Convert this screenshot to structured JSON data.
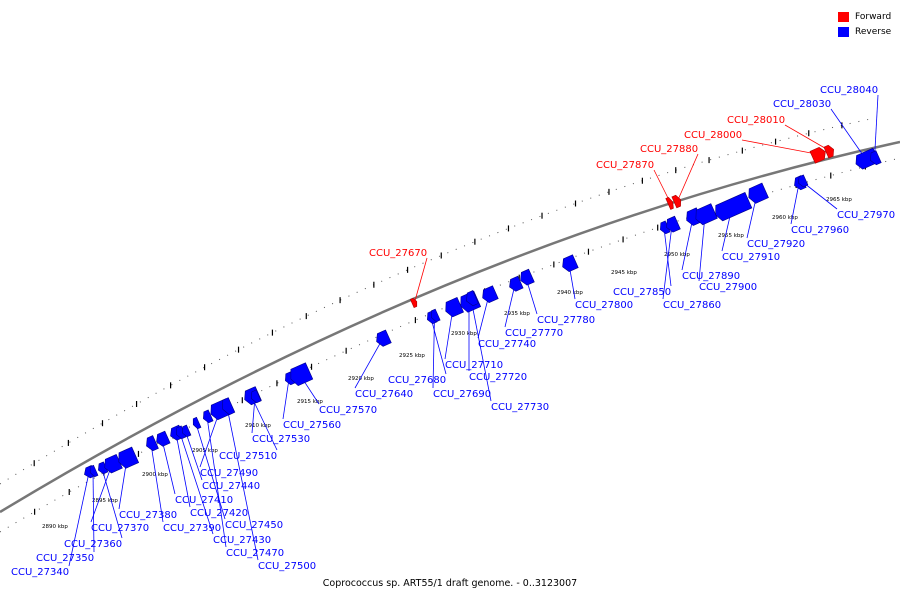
{
  "caption": "Coprococcus sp. ART55/1 draft genome. - 0..3123007",
  "legend": {
    "forward_label": "Forward",
    "reverse_label": "Reverse",
    "forward_color": "#ff0000",
    "reverse_color": "#0000ff"
  },
  "ruler_ticks": [
    "2890 kbp",
    "2895 kbp",
    "2900 kbp",
    "2905 kbp",
    "2910 kbp",
    "2915 kbp",
    "2920 kbp",
    "2925 kbp",
    "2930 kbp",
    "2935 kbp",
    "2940 kbp",
    "2945 kbp",
    "2950 kbp",
    "2955 kbp",
    "2960 kbp",
    "2965 kbp"
  ],
  "forward_genes": [
    "CCU_27670",
    "CCU_27870",
    "CCU_27880",
    "CCU_28000",
    "CCU_28010"
  ],
  "reverse_genes": [
    "CCU_27340",
    "CCU_27350",
    "CCU_27360",
    "CCU_27370",
    "CCU_27380",
    "CCU_27390",
    "CCU_27410",
    "CCU_27420",
    "CCU_27430",
    "CCU_27440",
    "CCU_27450",
    "CCU_27470",
    "CCU_27490",
    "CCU_27500",
    "CCU_27510",
    "CCU_27530",
    "CCU_27560",
    "CCU_27570",
    "CCU_27640",
    "CCU_27680",
    "CCU_27690",
    "CCU_27710",
    "CCU_27720",
    "CCU_27730",
    "CCU_27740",
    "CCU_27770",
    "CCU_27780",
    "CCU_27800",
    "CCU_27850",
    "CCU_27860",
    "CCU_27890",
    "CCU_27900",
    "CCU_27910",
    "CCU_27920",
    "CCU_27960",
    "CCU_27970",
    "CCU_28030",
    "CCU_28040"
  ]
}
